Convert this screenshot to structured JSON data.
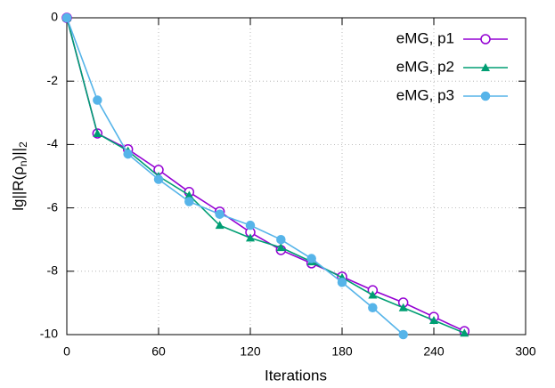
{
  "chart_data": {
    "type": "line",
    "x_label": "Iterations",
    "y_label": [
      "lg||R(ρ",
      "n",
      ")||",
      "2"
    ],
    "x": [
      0,
      20,
      40,
      60,
      80,
      100,
      120,
      140,
      160,
      180,
      200,
      220,
      240,
      260
    ],
    "series": [
      {
        "name": "eMG, p1",
        "color": "#9400d3",
        "marker": "open-circle",
        "values": [
          0,
          -3.65,
          -4.15,
          -4.8,
          -5.5,
          -6.12,
          -6.77,
          -7.33,
          -7.75,
          -8.17,
          -8.6,
          -8.99,
          -9.44,
          -9.89
        ]
      },
      {
        "name": "eMG, p2",
        "color": "#009e73",
        "marker": "triangle",
        "values": [
          0,
          -3.65,
          -4.2,
          -5.0,
          -5.6,
          -6.55,
          -6.95,
          -7.25,
          -7.7,
          -8.2,
          -8.75,
          -9.15,
          -9.55,
          -9.95
        ]
      },
      {
        "name": "eMG, p3",
        "color": "#56b4e9",
        "marker": "circle",
        "values": [
          0,
          -2.6,
          -4.3,
          -5.1,
          -5.8,
          -6.2,
          -6.55,
          -7.0,
          -7.6,
          -8.35,
          -9.15,
          -10.0,
          null,
          null
        ]
      }
    ],
    "xlim": [
      0,
      300
    ],
    "xticks": [
      0,
      60,
      120,
      180,
      240,
      300
    ],
    "ylim": [
      -10,
      0
    ],
    "yticks": [
      -10,
      -8,
      -6,
      -4,
      -2,
      0
    ],
    "grid": true,
    "legend": "top-right"
  }
}
